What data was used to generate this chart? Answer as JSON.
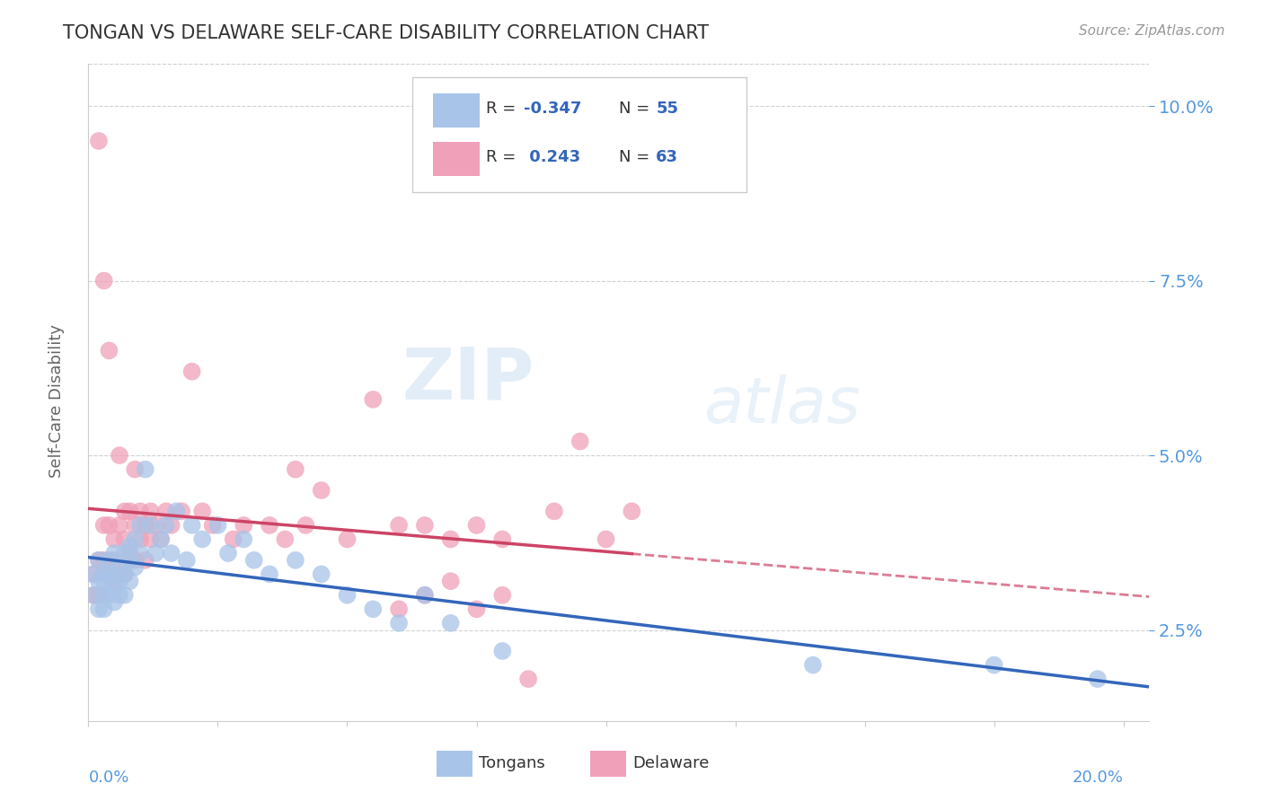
{
  "title": "TONGAN VS DELAWARE SELF-CARE DISABILITY CORRELATION CHART",
  "source": "Source: ZipAtlas.com",
  "ylabel": "Self-Care Disability",
  "xlim": [
    0.0,
    0.205
  ],
  "ylim": [
    0.012,
    0.106
  ],
  "ytick_positions": [
    0.025,
    0.05,
    0.075,
    0.1
  ],
  "ytick_labels": [
    "2.5%",
    "5.0%",
    "7.5%",
    "10.0%"
  ],
  "color_tongans": "#a8c4e8",
  "color_delaware": "#f0a0b8",
  "color_line_tongans": "#3366bb",
  "color_line_delaware": "#cc4466",
  "color_axis_labels": "#5599dd",
  "background_color": "#ffffff",
  "grid_color": "#cccccc",
  "watermark_zip": "ZIP",
  "watermark_atlas": "atlas",
  "tongans_x": [
    0.001,
    0.001,
    0.002,
    0.002,
    0.002,
    0.003,
    0.003,
    0.003,
    0.003,
    0.004,
    0.004,
    0.004,
    0.005,
    0.005,
    0.005,
    0.005,
    0.006,
    0.006,
    0.006,
    0.007,
    0.007,
    0.007,
    0.008,
    0.008,
    0.008,
    0.009,
    0.009,
    0.01,
    0.01,
    0.011,
    0.012,
    0.013,
    0.014,
    0.015,
    0.016,
    0.017,
    0.019,
    0.02,
    0.022,
    0.025,
    0.027,
    0.03,
    0.032,
    0.035,
    0.04,
    0.045,
    0.05,
    0.055,
    0.06,
    0.065,
    0.07,
    0.08,
    0.14,
    0.175,
    0.195
  ],
  "tongans_y": [
    0.033,
    0.03,
    0.035,
    0.032,
    0.028,
    0.033,
    0.032,
    0.03,
    0.028,
    0.035,
    0.033,
    0.03,
    0.036,
    0.033,
    0.031,
    0.029,
    0.034,
    0.032,
    0.03,
    0.036,
    0.033,
    0.03,
    0.037,
    0.035,
    0.032,
    0.038,
    0.034,
    0.04,
    0.036,
    0.048,
    0.04,
    0.036,
    0.038,
    0.04,
    0.036,
    0.042,
    0.035,
    0.04,
    0.038,
    0.04,
    0.036,
    0.038,
    0.035,
    0.033,
    0.035,
    0.033,
    0.03,
    0.028,
    0.026,
    0.03,
    0.026,
    0.022,
    0.02,
    0.02,
    0.018
  ],
  "delaware_x": [
    0.001,
    0.001,
    0.002,
    0.002,
    0.002,
    0.003,
    0.003,
    0.003,
    0.004,
    0.004,
    0.004,
    0.005,
    0.005,
    0.005,
    0.006,
    0.006,
    0.006,
    0.007,
    0.007,
    0.007,
    0.008,
    0.008,
    0.009,
    0.009,
    0.009,
    0.01,
    0.01,
    0.011,
    0.011,
    0.012,
    0.012,
    0.013,
    0.014,
    0.015,
    0.016,
    0.018,
    0.02,
    0.022,
    0.024,
    0.028,
    0.03,
    0.035,
    0.038,
    0.04,
    0.042,
    0.045,
    0.05,
    0.055,
    0.06,
    0.065,
    0.07,
    0.075,
    0.08,
    0.09,
    0.095,
    0.1,
    0.105,
    0.06,
    0.065,
    0.07,
    0.075,
    0.08,
    0.085
  ],
  "delaware_y": [
    0.033,
    0.03,
    0.095,
    0.035,
    0.03,
    0.04,
    0.075,
    0.035,
    0.04,
    0.065,
    0.033,
    0.038,
    0.035,
    0.032,
    0.05,
    0.04,
    0.033,
    0.042,
    0.038,
    0.033,
    0.042,
    0.036,
    0.048,
    0.04,
    0.035,
    0.042,
    0.038,
    0.04,
    0.035,
    0.042,
    0.038,
    0.04,
    0.038,
    0.042,
    0.04,
    0.042,
    0.062,
    0.042,
    0.04,
    0.038,
    0.04,
    0.04,
    0.038,
    0.048,
    0.04,
    0.045,
    0.038,
    0.058,
    0.04,
    0.04,
    0.038,
    0.04,
    0.038,
    0.042,
    0.052,
    0.038,
    0.042,
    0.028,
    0.03,
    0.032,
    0.028,
    0.03,
    0.018
  ]
}
